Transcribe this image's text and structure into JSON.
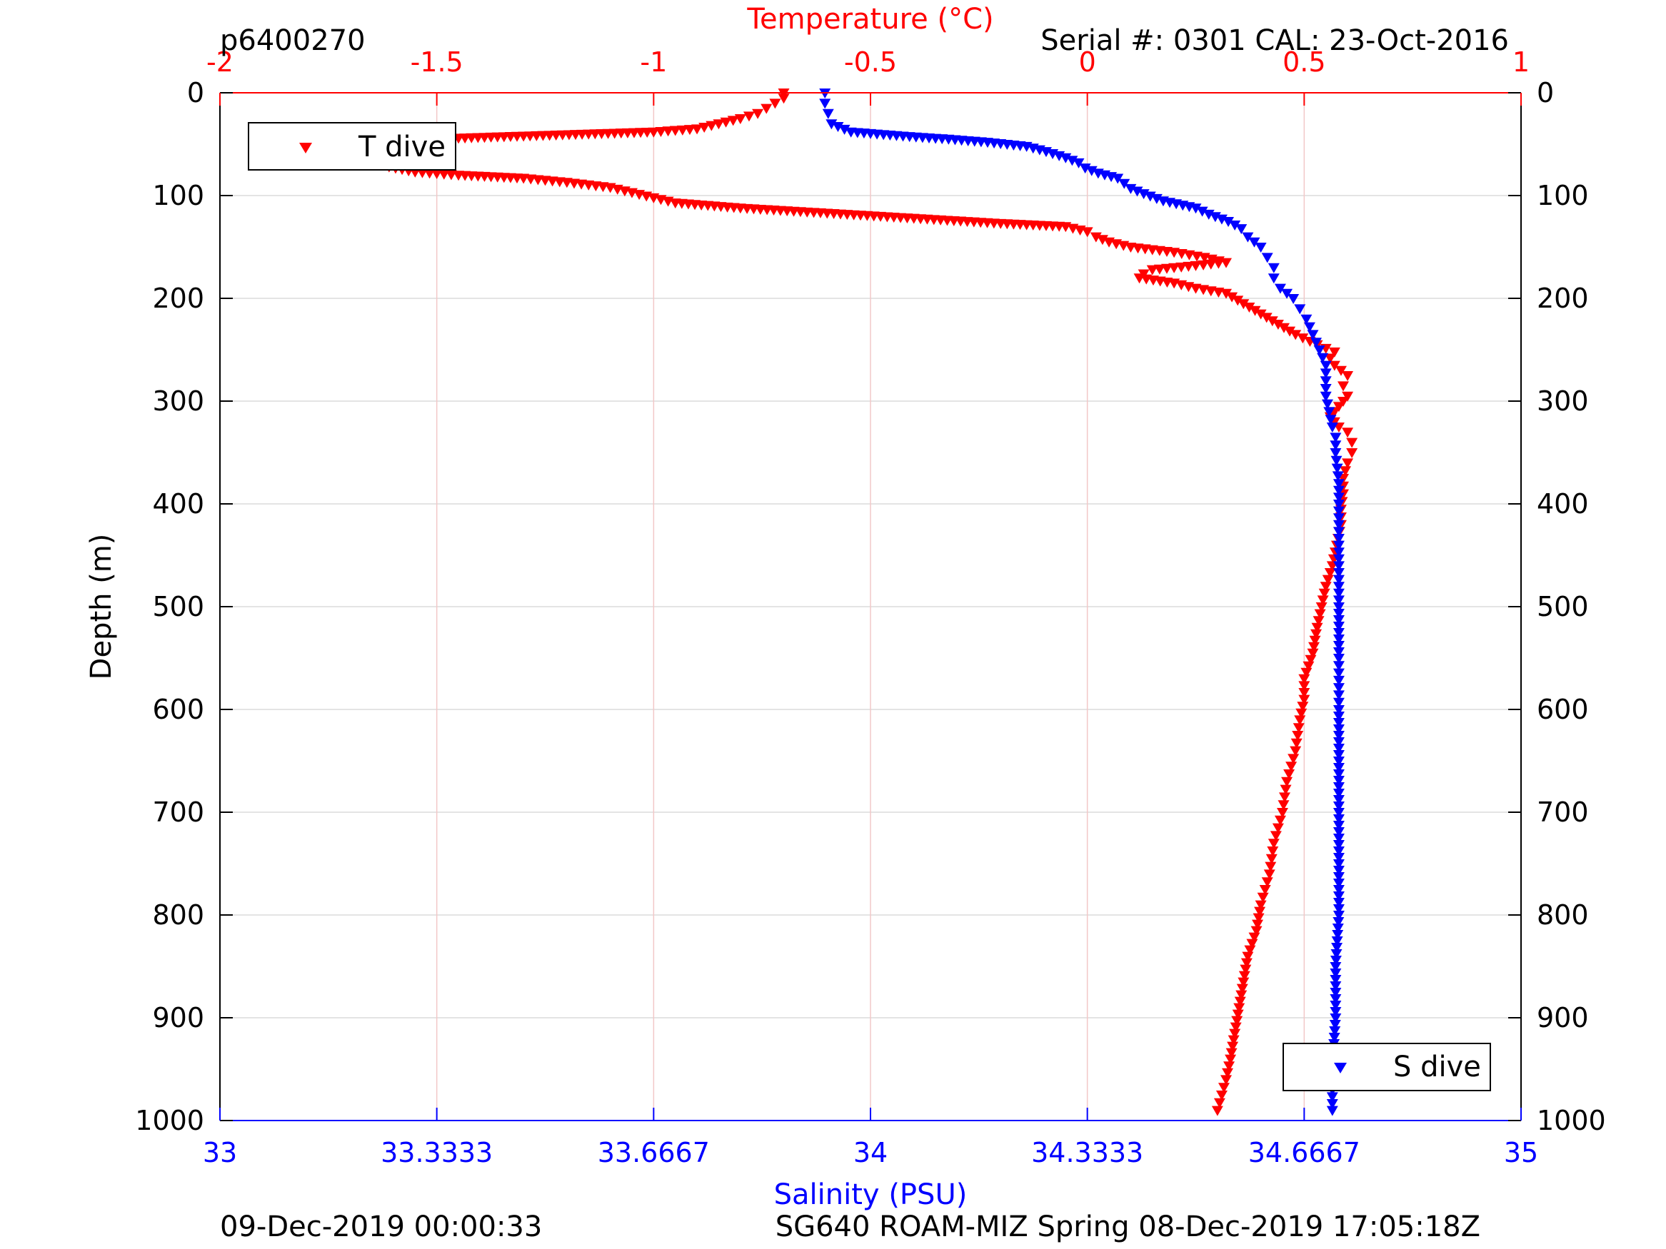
{
  "header": {
    "left": "p6400270",
    "right": "Serial #: 0301  CAL: 23-Oct-2016"
  },
  "footer": {
    "left": "09-Dec-2019 00:00:33",
    "right": "SG640 ROAM-MIZ Spring 08-Dec-2019 17:05:18Z"
  },
  "chart_data": {
    "type": "scatter",
    "marker": "triangle-down",
    "grid": true,
    "ylabel": "Depth (m)",
    "y_axis": {
      "range": [
        0,
        1000
      ],
      "reversed": true,
      "ticks": [
        "0",
        "100",
        "200",
        "300",
        "400",
        "500",
        "600",
        "700",
        "800",
        "900",
        "1000"
      ]
    },
    "x_top": {
      "label": "Temperature (°C)",
      "range": [
        -2,
        1
      ],
      "color": "#ff0000",
      "ticks": [
        "-2",
        "-1.5",
        "-1",
        "-0.5",
        "0",
        "0.5",
        "1"
      ]
    },
    "x_bottom": {
      "label": "Salinity (PSU)",
      "range": [
        33,
        35
      ],
      "color": "#0000ff",
      "ticks": [
        "33",
        "33.3333",
        "33.6667",
        "34",
        "34.3333",
        "34.6667",
        "35"
      ]
    },
    "series": [
      {
        "name": "T dive",
        "axis": "top",
        "color": "#ff0000",
        "legend": "top-left",
        "points": [
          [
            -0.7,
            0
          ],
          [
            -0.7,
            5
          ],
          [
            -0.72,
            10
          ],
          [
            -0.74,
            15
          ],
          [
            -0.76,
            20
          ],
          [
            -0.8,
            25
          ],
          [
            -0.85,
            30
          ],
          [
            -0.9,
            35
          ],
          [
            -1.0,
            38
          ],
          [
            -1.15,
            40
          ],
          [
            -1.3,
            42
          ],
          [
            -1.45,
            44
          ],
          [
            -1.58,
            47
          ],
          [
            -1.66,
            50
          ],
          [
            -1.69,
            53
          ],
          [
            -1.68,
            57
          ],
          [
            -1.66,
            62
          ],
          [
            -1.64,
            67
          ],
          [
            -1.61,
            72
          ],
          [
            -1.55,
            77
          ],
          [
            -1.45,
            80
          ],
          [
            -1.3,
            83
          ],
          [
            -1.2,
            87
          ],
          [
            -1.1,
            92
          ],
          [
            -1.05,
            97
          ],
          [
            -1.0,
            102
          ],
          [
            -0.95,
            107
          ],
          [
            -0.8,
            112
          ],
          [
            -0.6,
            117
          ],
          [
            -0.4,
            122
          ],
          [
            -0.2,
            127
          ],
          [
            -0.05,
            130
          ],
          [
            0.0,
            135
          ],
          [
            0.02,
            140
          ],
          [
            0.05,
            145
          ],
          [
            0.1,
            150
          ],
          [
            0.2,
            155
          ],
          [
            0.27,
            160
          ],
          [
            0.32,
            165
          ],
          [
            0.25,
            168
          ],
          [
            0.15,
            172
          ],
          [
            0.13,
            176
          ],
          [
            0.12,
            180
          ],
          [
            0.2,
            185
          ],
          [
            0.25,
            190
          ],
          [
            0.32,
            195
          ],
          [
            0.36,
            205
          ],
          [
            0.4,
            215
          ],
          [
            0.44,
            225
          ],
          [
            0.48,
            235
          ],
          [
            0.53,
            245
          ],
          [
            0.57,
            252
          ],
          [
            0.56,
            258
          ],
          [
            0.57,
            265
          ],
          [
            0.6,
            275
          ],
          [
            0.59,
            285
          ],
          [
            0.6,
            295
          ],
          [
            0.58,
            305
          ],
          [
            0.56,
            315
          ],
          [
            0.58,
            325
          ],
          [
            0.6,
            330
          ],
          [
            0.61,
            340
          ],
          [
            0.61,
            350
          ],
          [
            0.6,
            360
          ],
          [
            0.59,
            375
          ],
          [
            0.59,
            390
          ],
          [
            0.585,
            405
          ],
          [
            0.585,
            420
          ],
          [
            0.575,
            440
          ],
          [
            0.565,
            460
          ],
          [
            0.55,
            480
          ],
          [
            0.54,
            500
          ],
          [
            0.53,
            520
          ],
          [
            0.52,
            545
          ],
          [
            0.5,
            570
          ],
          [
            0.5,
            590
          ],
          [
            0.49,
            610
          ],
          [
            0.48,
            640
          ],
          [
            0.46,
            670
          ],
          [
            0.45,
            700
          ],
          [
            0.43,
            730
          ],
          [
            0.42,
            760
          ],
          [
            0.4,
            790
          ],
          [
            0.39,
            815
          ],
          [
            0.37,
            840
          ],
          [
            0.36,
            865
          ],
          [
            0.35,
            890
          ],
          [
            0.34,
            915
          ],
          [
            0.33,
            940
          ],
          [
            0.32,
            960
          ],
          [
            0.31,
            975
          ],
          [
            0.3,
            990
          ]
        ]
      },
      {
        "name": "S dive",
        "axis": "bottom",
        "color": "#0000ff",
        "legend": "bottom-right",
        "points": [
          [
            33.93,
            0
          ],
          [
            33.93,
            10
          ],
          [
            33.935,
            20
          ],
          [
            33.94,
            30
          ],
          [
            33.97,
            38
          ],
          [
            34.05,
            42
          ],
          [
            34.12,
            45
          ],
          [
            34.18,
            48
          ],
          [
            34.24,
            52
          ],
          [
            34.27,
            57
          ],
          [
            34.3,
            63
          ],
          [
            34.32,
            68
          ],
          [
            34.33,
            73
          ],
          [
            34.35,
            78
          ],
          [
            34.38,
            83
          ],
          [
            34.39,
            88
          ],
          [
            34.4,
            93
          ],
          [
            34.42,
            98
          ],
          [
            34.45,
            105
          ],
          [
            34.5,
            112
          ],
          [
            34.52,
            118
          ],
          [
            34.55,
            125
          ],
          [
            34.57,
            132
          ],
          [
            34.58,
            140
          ],
          [
            34.6,
            150
          ],
          [
            34.61,
            160
          ],
          [
            34.62,
            170
          ],
          [
            34.62,
            180
          ],
          [
            34.63,
            190
          ],
          [
            34.65,
            200
          ],
          [
            34.66,
            210
          ],
          [
            34.67,
            220
          ],
          [
            34.68,
            235
          ],
          [
            34.69,
            250
          ],
          [
            34.7,
            265
          ],
          [
            34.7,
            280
          ],
          [
            34.7,
            295
          ],
          [
            34.705,
            310
          ],
          [
            34.71,
            325
          ],
          [
            34.715,
            335
          ],
          [
            34.715,
            350
          ],
          [
            34.72,
            380
          ],
          [
            34.72,
            420
          ],
          [
            34.72,
            460
          ],
          [
            34.72,
            500
          ],
          [
            34.72,
            550
          ],
          [
            34.72,
            600
          ],
          [
            34.72,
            650
          ],
          [
            34.72,
            700
          ],
          [
            34.72,
            750
          ],
          [
            34.72,
            800
          ],
          [
            34.715,
            850
          ],
          [
            34.715,
            900
          ],
          [
            34.71,
            950
          ],
          [
            34.71,
            990
          ]
        ]
      }
    ]
  }
}
